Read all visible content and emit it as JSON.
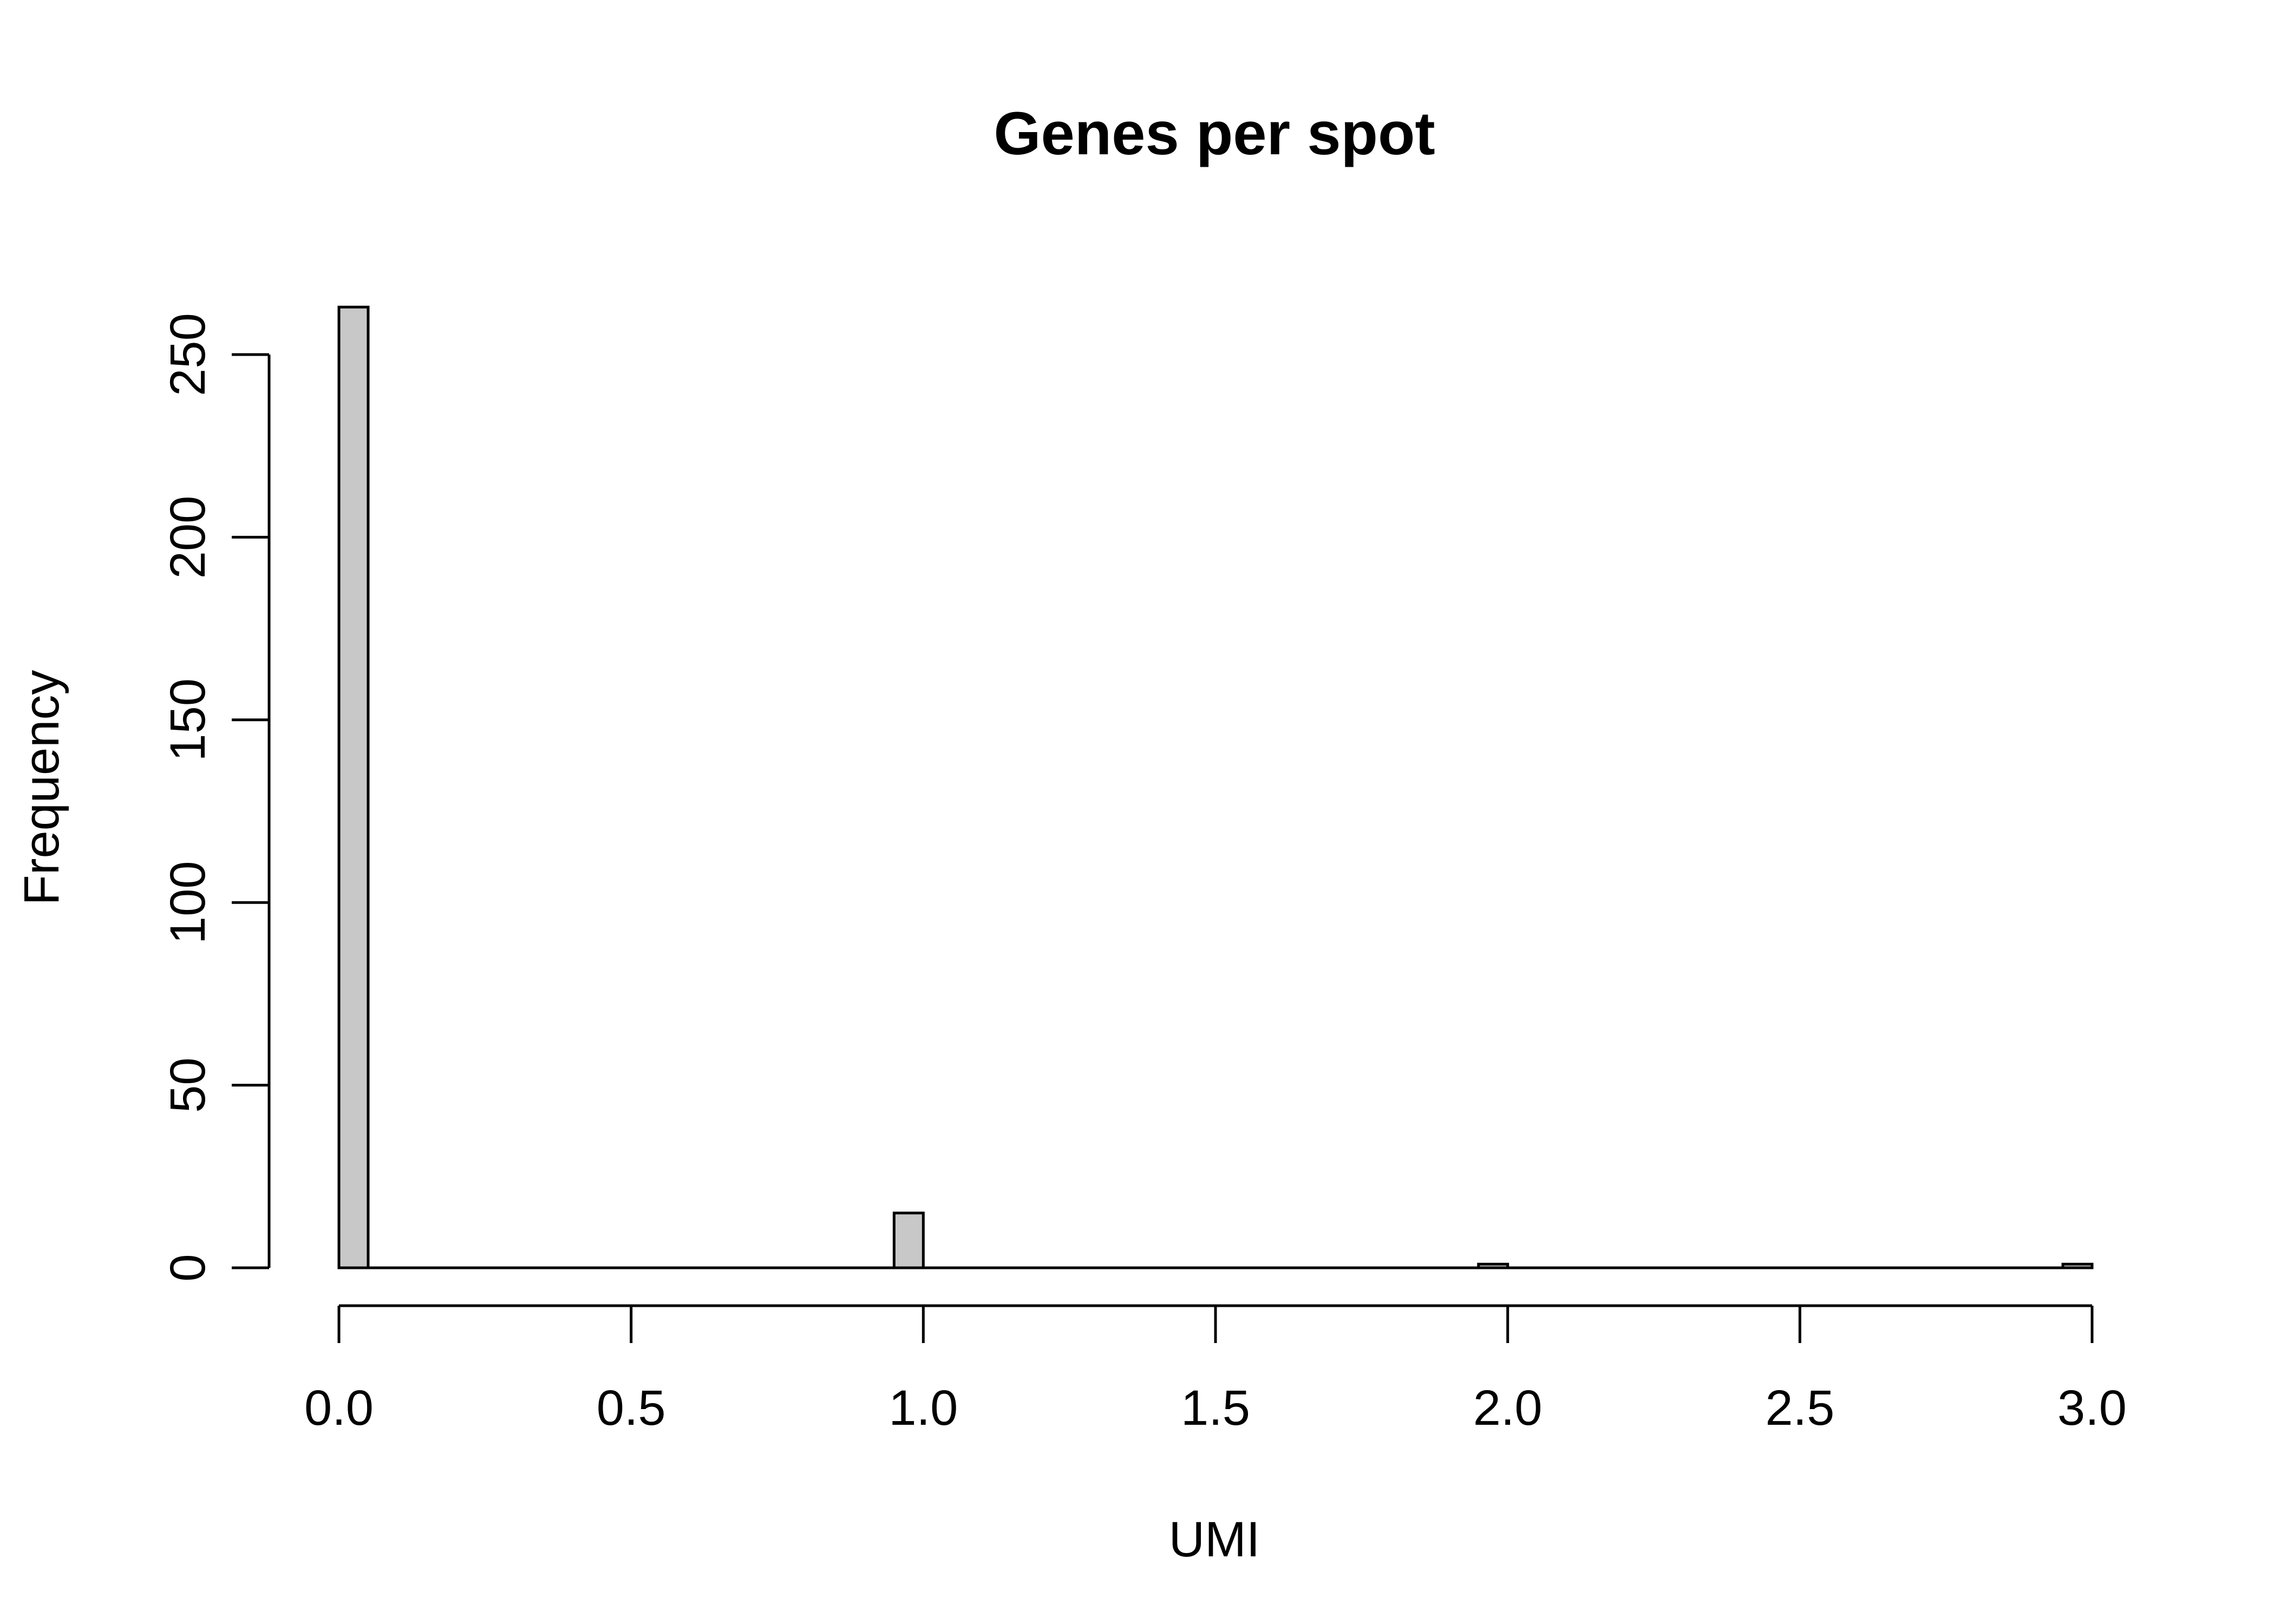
{
  "chart_data": {
    "type": "bar",
    "title": "Genes per spot",
    "xlabel": "UMI",
    "ylabel": "Frequency",
    "xlim": [
      0,
      3
    ],
    "ylim": [
      0,
      263
    ],
    "bin_width": 0.05,
    "bars": [
      {
        "x0": 0.0,
        "x1": 0.05,
        "value": 263
      },
      {
        "x0": 0.95,
        "x1": 1.0,
        "value": 15
      },
      {
        "x0": 1.95,
        "x1": 2.0,
        "value": 1
      },
      {
        "x0": 2.95,
        "x1": 3.0,
        "value": 1
      }
    ],
    "x_ticks": [
      "0.0",
      "0.5",
      "1.0",
      "1.5",
      "2.0",
      "2.5",
      "3.0"
    ],
    "x_tick_values": [
      0,
      0.5,
      1.0,
      1.5,
      2.0,
      2.5,
      3.0
    ],
    "y_ticks": [
      "0",
      "50",
      "100",
      "150",
      "200",
      "250"
    ],
    "y_tick_values": [
      0,
      50,
      100,
      150,
      200,
      250
    ],
    "bar_color": "#c8c8c8",
    "grid": false
  }
}
